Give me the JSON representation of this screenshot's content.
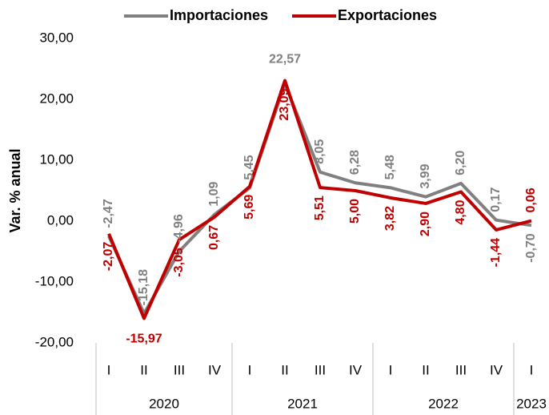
{
  "chart_data": {
    "type": "line",
    "y_label": "Var. % anual",
    "category_groups": [
      {
        "label": "2020",
        "categories": [
          "I",
          "II",
          "III",
          "IV"
        ]
      },
      {
        "label": "2021",
        "categories": [
          "I",
          "II",
          "III",
          "IV"
        ]
      },
      {
        "label": "2022",
        "categories": [
          "I",
          "II",
          "III",
          "IV"
        ]
      },
      {
        "label": "2023",
        "categories": [
          "I"
        ]
      }
    ],
    "series": [
      {
        "name": "Importaciones",
        "color": "#808080",
        "values": [
          -2.47,
          -15.18,
          -4.96,
          1.09,
          5.45,
          22.57,
          8.05,
          6.28,
          5.48,
          3.99,
          6.2,
          0.17,
          -0.7
        ],
        "value_labels": [
          "-2,47",
          "-15,18",
          "-4,96",
          "1,09",
          "5,45",
          "22,57",
          "8,05",
          "6,28",
          "5,48",
          "3,99",
          "6,20",
          "0,17",
          "-0,70"
        ]
      },
      {
        "name": "Exportaciones",
        "color": "#c00000",
        "values": [
          -2.07,
          -15.97,
          -3.05,
          0.67,
          5.69,
          23.09,
          5.51,
          5.0,
          3.82,
          2.9,
          4.8,
          -1.44,
          0.06
        ],
        "value_labels": [
          "-2,07",
          "-15,97",
          "-3,05",
          "0,67",
          "5,69",
          "23,09",
          "5,51",
          "5,00",
          "3,82",
          "2,90",
          "4,80",
          "-1,44",
          "0,06"
        ]
      }
    ],
    "ylim": [
      -20,
      30
    ],
    "yticks": [
      {
        "value": -20,
        "label": "-20,00"
      },
      {
        "value": -10,
        "label": "-10,00"
      },
      {
        "value": 0,
        "label": "0,00"
      },
      {
        "value": 10,
        "label": "10,00"
      },
      {
        "value": 20,
        "label": "20,00"
      },
      {
        "value": 30,
        "label": "30,00"
      }
    ],
    "legend": "top"
  }
}
